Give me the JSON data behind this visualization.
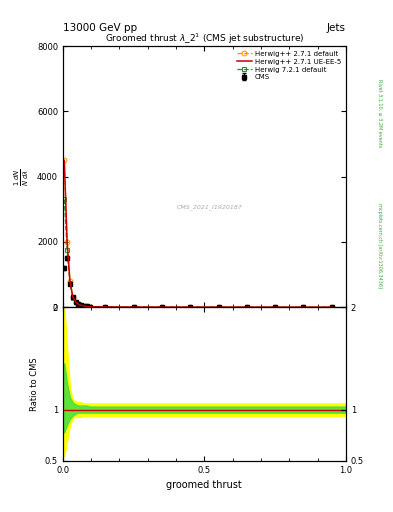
{
  "title": "13000 GeV pp",
  "title_right": "Jets",
  "plot_title": "Groomed thrust $\\lambda\\_2^1$ (CMS jet substructure)",
  "xlabel": "groomed thrust",
  "ylabel_ratio": "Ratio to CMS",
  "watermark": "CMS_2021_I1920187",
  "right_label_top": "Rivet 3.1.10, ≥ 3.2M events",
  "right_label_bottom": "mcplots.cern.ch [arXiv:1306.3436]",
  "cms_color": "#000000",
  "herwig271_default_color": "#ff8c00",
  "herwig271_ueee5_color": "#cc0000",
  "herwig721_default_color": "#228b22",
  "main_x": [
    0.005,
    0.015,
    0.025,
    0.035,
    0.045,
    0.055,
    0.065,
    0.075,
    0.085,
    0.095,
    0.15,
    0.25,
    0.35,
    0.45,
    0.55,
    0.65,
    0.75,
    0.85,
    0.95
  ],
  "cms_y": [
    1200,
    1500,
    700,
    300,
    150,
    90,
    55,
    35,
    22,
    16,
    7,
    3,
    1.5,
    0.8,
    0.5,
    0.3,
    0.2,
    0.1,
    0.05
  ],
  "cms_yerr": [
    60,
    60,
    30,
    15,
    8,
    5,
    3,
    2,
    1.5,
    1,
    0.4,
    0.2,
    0.1,
    0.05,
    0.03,
    0.02,
    0.01,
    0.01,
    0.005
  ],
  "herwig271_default_y": [
    4500,
    2000,
    800,
    320,
    160,
    90,
    55,
    35,
    22,
    16,
    7,
    3,
    1.5,
    0.8,
    0.5,
    0.3,
    0.2,
    0.1,
    0.05
  ],
  "herwig271_ueee5_y": [
    4500,
    2000,
    800,
    320,
    160,
    90,
    55,
    35,
    22,
    16,
    7,
    3,
    1.5,
    0.8,
    0.5,
    0.3,
    0.2,
    0.1,
    0.05
  ],
  "herwig721_default_y": [
    3300,
    1750,
    730,
    290,
    148,
    85,
    52,
    33,
    21,
    15,
    6.5,
    2.8,
    1.4,
    0.7,
    0.45,
    0.28,
    0.18,
    0.09,
    0.04
  ],
  "ylim_main": [
    0,
    8000
  ],
  "ylim_ratio": [
    0.5,
    2.0
  ],
  "xlim": [
    0.0,
    1.0
  ],
  "yticks_main": [
    0,
    2000,
    4000,
    6000,
    8000
  ],
  "ytick_labels_main": [
    "0",
    "2000",
    "4000",
    "6000",
    "8000"
  ],
  "yticks_ratio": [
    0.5,
    1.0,
    2.0
  ],
  "background_color": "#ffffff"
}
